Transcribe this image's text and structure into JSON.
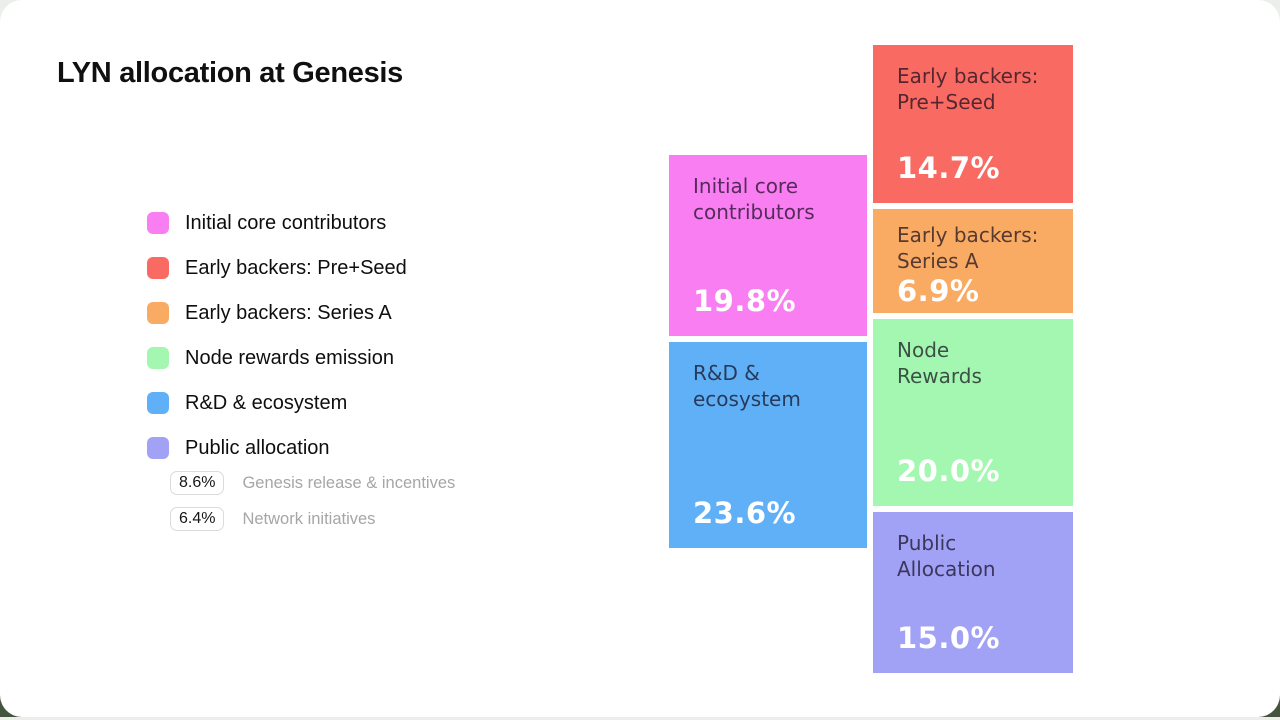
{
  "page": {
    "title": "LYN allocation at Genesis",
    "card_background": "#FFFFFF",
    "outer_background": "#ECEEEB",
    "bottom_band_color": "#44543F"
  },
  "legend": {
    "items": [
      {
        "label": "Initial core contributors",
        "color": "#F97EF2"
      },
      {
        "label": "Early backers: Pre+Seed",
        "color": "#F96B62"
      },
      {
        "label": "Early backers: Series A",
        "color": "#FAAB63"
      },
      {
        "label": "Node rewards emission",
        "color": "#A3F7B0"
      },
      {
        "label": "R&D & ecosystem",
        "color": "#5FB0F6"
      },
      {
        "label": "Public allocation",
        "color": "#A1A1F6"
      }
    ],
    "public_allocation_breakdown": [
      {
        "value": "8.6%",
        "label": "Genesis release & incentives"
      },
      {
        "value": "6.4%",
        "label": "Network initiatives"
      }
    ]
  },
  "blocks": {
    "initial_core": {
      "label": "Initial core\ncontributors",
      "value": "19.8%",
      "color": "#F97EF2"
    },
    "rd_ecosystem": {
      "label": "R&D &\necosystem",
      "value": "23.6%",
      "color": "#5FB0F6"
    },
    "pre_seed": {
      "label": "Early backers:\nPre+Seed",
      "value": "14.7%",
      "color": "#F96B62"
    },
    "series_a": {
      "label": "Early backers:\nSeries A",
      "value": "6.9%",
      "color": "#FAAB63"
    },
    "node_rewards": {
      "label": "Node\nRewards",
      "value": "20.0%",
      "color": "#A3F7B0"
    },
    "public_allocation": {
      "label": "Public\nAllocation",
      "value": "15.0%",
      "color": "#A1A1F6"
    }
  },
  "chart_data": {
    "type": "bar",
    "variant": "proportional-block (treemap-style) token allocation, two columns",
    "title": "LYN allocation at Genesis",
    "unit": "%",
    "total": 100.0,
    "categories": [
      "Initial core contributors",
      "Early backers: Pre+Seed",
      "Early backers: Series A",
      "Node rewards emission",
      "R&D & ecosystem",
      "Public allocation"
    ],
    "values": [
      19.8,
      14.7,
      6.9,
      20.0,
      23.6,
      15.0
    ],
    "colors": [
      "#F97EF2",
      "#F96B62",
      "#FAAB63",
      "#A3F7B0",
      "#5FB0F6",
      "#A1A1F6"
    ],
    "block_display_labels": [
      "Initial core contributors",
      "Early backers: Pre+Seed",
      "Early backers: Series A",
      "Node Rewards",
      "R&D & ecosystem",
      "Public Allocation"
    ],
    "columns": {
      "left": [
        "Initial core contributors",
        "R&D & ecosystem"
      ],
      "right": [
        "Early backers: Pre+Seed",
        "Early backers: Series A",
        "Node rewards emission",
        "Public allocation"
      ]
    },
    "breakdown": {
      "Public allocation": [
        {
          "label": "Genesis release & incentives",
          "value": 8.6
        },
        {
          "label": "Network initiatives",
          "value": 6.4
        }
      ]
    },
    "legend_position": "left",
    "grid": false
  }
}
